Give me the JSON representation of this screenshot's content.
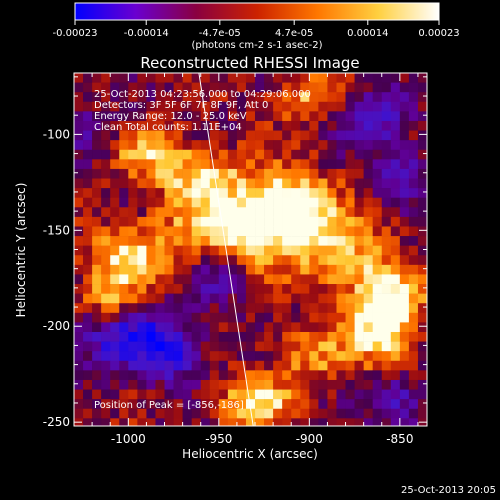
{
  "chart_data": {
    "type": "heatmap",
    "title": "Reconstructed RHESSI Image",
    "xlabel": "Heliocentric X (arcsec)",
    "ylabel": "Heliocentric Y (arcsec)",
    "xlim": [
      -1030,
      -835
    ],
    "ylim": [
      -252,
      -68
    ],
    "x_ticks": [
      -1000,
      -950,
      -900,
      -850
    ],
    "x_tick_labels": [
      "-1000",
      "-950",
      "-900",
      "-850"
    ],
    "y_ticks": [
      -100,
      -150,
      -200,
      -250
    ],
    "y_tick_labels": [
      "-100",
      "-150",
      "-200",
      "-250"
    ],
    "colorbar": {
      "min": -0.00023,
      "max": 0.00023,
      "ticks": [
        -0.00023,
        -0.00014,
        -4.7e-05,
        4.7e-05,
        0.00014,
        0.00023
      ],
      "tick_labels": [
        "-0.00023",
        "-0.00014",
        "-4.7e-05",
        "4.7e-05",
        "0.00014",
        "0.00023"
      ],
      "units_label": "(photons cm-2 s-1 asec-2)",
      "colors": [
        "#0000ff",
        "#6a00d0",
        "#8a0040",
        "#cc2200",
        "#ff7700",
        "#ffd040",
        "#ffffff"
      ]
    },
    "annotations": [
      "25-Oct-2013 04:23:56.000 to 04:29:06.000",
      "Detectors: 3F 5F 6F 7F 8F 9F, Att 0",
      "Energy Range: 12.0 - 25.0 keV",
      "Clean      Total counts: 1.11E+04"
    ],
    "peak_label": "Position of Peak = [-856,-186]",
    "peak_position": [
      -856,
      -186
    ],
    "limb_line": [
      [
        -961,
        -68
      ],
      [
        -931,
        -252
      ]
    ],
    "bright_sources": [
      {
        "x": -935,
        "y": -148,
        "intensity": 1.0,
        "sx": 28,
        "sy": 14
      },
      {
        "x": -912,
        "y": -135,
        "intensity": 0.85,
        "sx": 16,
        "sy": 12
      },
      {
        "x": -880,
        "y": -165,
        "intensity": 0.6,
        "sx": 18,
        "sy": 14
      },
      {
        "x": -856,
        "y": -186,
        "intensity": 0.95,
        "sx": 12,
        "sy": 12
      },
      {
        "x": -860,
        "y": -205,
        "intensity": 0.7,
        "sx": 14,
        "sy": 12
      },
      {
        "x": -1000,
        "y": -165,
        "intensity": 0.75,
        "sx": 16,
        "sy": 12
      },
      {
        "x": -1010,
        "y": -190,
        "intensity": 0.6,
        "sx": 12,
        "sy": 10
      },
      {
        "x": -960,
        "y": -120,
        "intensity": 0.65,
        "sx": 16,
        "sy": 10
      },
      {
        "x": -900,
        "y": -80,
        "intensity": 0.6,
        "sx": 14,
        "sy": 8
      },
      {
        "x": -930,
        "y": -240,
        "intensity": 0.8,
        "sx": 14,
        "sy": 10
      },
      {
        "x": -900,
        "y": -215,
        "intensity": 0.55,
        "sx": 14,
        "sy": 10
      },
      {
        "x": -990,
        "y": -110,
        "intensity": 0.55,
        "sx": 14,
        "sy": 10
      }
    ],
    "dark_regions": [
      {
        "x": -1000,
        "y": -205,
        "intensity": -0.9,
        "sx": 20,
        "sy": 12
      },
      {
        "x": -975,
        "y": -215,
        "intensity": -0.6,
        "sx": 12,
        "sy": 10
      },
      {
        "x": -865,
        "y": -90,
        "intensity": -0.7,
        "sx": 14,
        "sy": 10
      },
      {
        "x": -850,
        "y": -120,
        "intensity": -0.55,
        "sx": 10,
        "sy": 10
      },
      {
        "x": -950,
        "y": -175,
        "intensity": -0.45,
        "sx": 10,
        "sy": 10
      },
      {
        "x": -850,
        "y": -240,
        "intensity": -0.6,
        "sx": 10,
        "sy": 10
      },
      {
        "x": -1020,
        "y": -100,
        "intensity": -0.35,
        "sx": 10,
        "sy": 10
      }
    ]
  },
  "footer": {
    "timestamp": "25-Oct-2013 20:05"
  }
}
